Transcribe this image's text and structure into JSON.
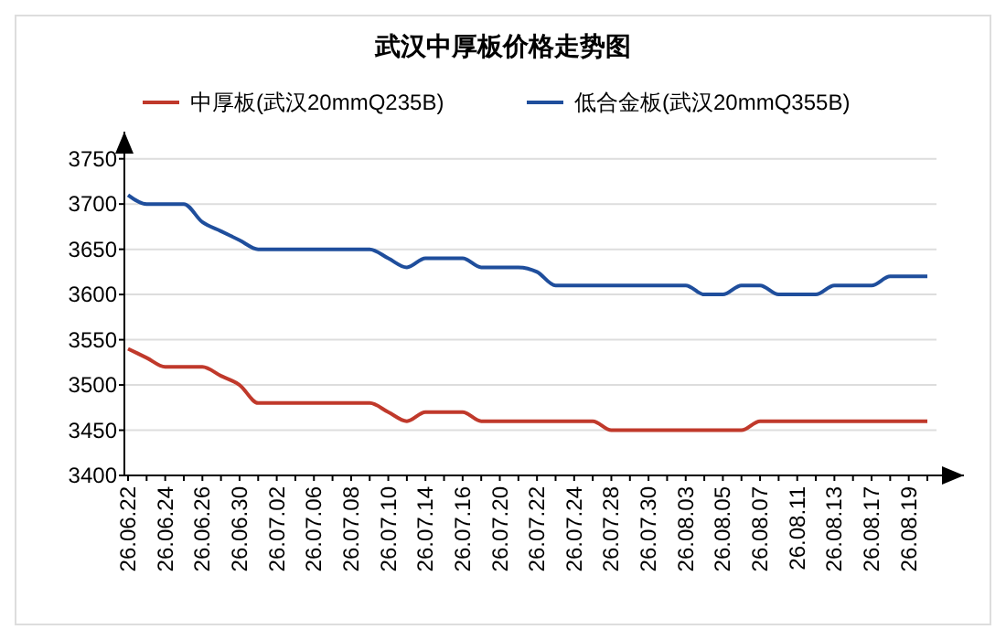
{
  "chart_data": {
    "type": "line",
    "title": "武汉中厚板价格走势图",
    "categories": [
      "26.06.22",
      null,
      "26.06.24",
      null,
      "26.06.26",
      null,
      "26.06.30",
      null,
      "26.07.02",
      null,
      "26.07.06",
      null,
      "26.07.08",
      null,
      "26.07.10",
      null,
      "26.07.14",
      null,
      "26.07.16",
      null,
      "26.07.20",
      null,
      "26.07.22",
      null,
      "26.07.24",
      null,
      "26.07.28",
      null,
      "26.07.30",
      null,
      "26.08.03",
      null,
      "26.08.05",
      null,
      "26.08.07",
      null,
      "26.08.11",
      null,
      "26.08.13",
      null,
      "26.08.17",
      null,
      "26.08.19",
      null
    ],
    "series": [
      {
        "name": "中厚板(武汉20mmQ235B)",
        "color": "#c0392b",
        "values": [
          3540,
          3530,
          3520,
          3520,
          3520,
          3510,
          3500,
          3480,
          3480,
          3480,
          3480,
          3480,
          3480,
          3480,
          3470,
          3460,
          3470,
          3470,
          3470,
          3460,
          3460,
          3460,
          3460,
          3460,
          3460,
          3460,
          3450,
          3450,
          3450,
          3450,
          3450,
          3450,
          3450,
          3450,
          3460,
          3460,
          3460,
          3460,
          3460,
          3460,
          3460,
          3460,
          3460,
          3460
        ]
      },
      {
        "name": "低合金板(武汉20mmQ355B)",
        "color": "#1f4e9c",
        "values": [
          3710,
          3700,
          3700,
          3700,
          3680,
          3670,
          3660,
          3650,
          3650,
          3650,
          3650,
          3650,
          3650,
          3650,
          3640,
          3630,
          3640,
          3640,
          3640,
          3630,
          3630,
          3630,
          3625,
          3610,
          3610,
          3610,
          3610,
          3610,
          3610,
          3610,
          3610,
          3600,
          3600,
          3610,
          3610,
          3600,
          3600,
          3600,
          3610,
          3610,
          3610,
          3620,
          3620,
          3620
        ]
      }
    ],
    "ylim": [
      3400,
      3780
    ],
    "yticks": [
      3400,
      3450,
      3500,
      3550,
      3600,
      3650,
      3700,
      3750
    ],
    "grid": "y",
    "legend": "top",
    "marker": "none",
    "line_style": "solid"
  }
}
